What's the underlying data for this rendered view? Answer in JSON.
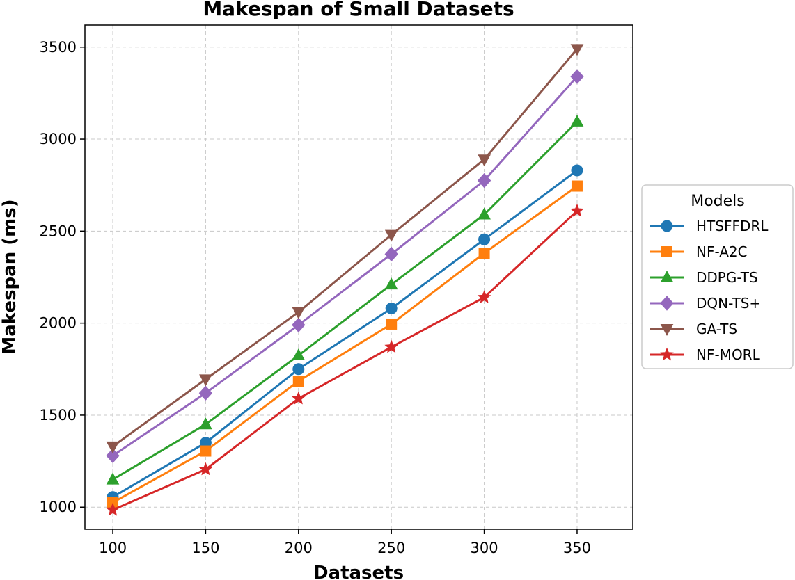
{
  "chart_data": {
    "type": "line",
    "title": "Makespan of Small Datasets",
    "xlabel": "Datasets",
    "ylabel": "Makespan (ms)",
    "x": [
      100,
      150,
      200,
      250,
      300,
      350
    ],
    "x_ticks": [
      "100",
      "150",
      "200",
      "250",
      "300",
      "350"
    ],
    "y_ticks": [
      "1000",
      "1500",
      "2000",
      "2500",
      "3000",
      "3500"
    ],
    "xlim": [
      85,
      380
    ],
    "ylim": [
      880,
      3620
    ],
    "grid": true,
    "legend": {
      "title": "Models",
      "placement": "right"
    },
    "series": [
      {
        "name": "HTSFFDRL",
        "color": "#1f77b4",
        "marker": "circle",
        "values": [
          1055,
          1350,
          1750,
          2080,
          2455,
          2830
        ]
      },
      {
        "name": "NF-A2C",
        "color": "#ff7f0e",
        "marker": "square",
        "values": [
          1025,
          1305,
          1685,
          1995,
          2380,
          2745
        ]
      },
      {
        "name": "DDPG-TS",
        "color": "#2ca02c",
        "marker": "triangle",
        "values": [
          1150,
          1450,
          1825,
          2210,
          2590,
          3095
        ]
      },
      {
        "name": "DQN-TS+",
        "color": "#9467bd",
        "marker": "diamond",
        "values": [
          1280,
          1620,
          1990,
          2375,
          2775,
          3340
        ]
      },
      {
        "name": "GA-TS",
        "color": "#8c564b",
        "marker": "triangle-down",
        "values": [
          1330,
          1695,
          2060,
          2480,
          2890,
          3490
        ]
      },
      {
        "name": "NF-MORL",
        "color": "#d62728",
        "marker": "star",
        "values": [
          985,
          1205,
          1590,
          1870,
          2140,
          2610
        ]
      }
    ]
  }
}
